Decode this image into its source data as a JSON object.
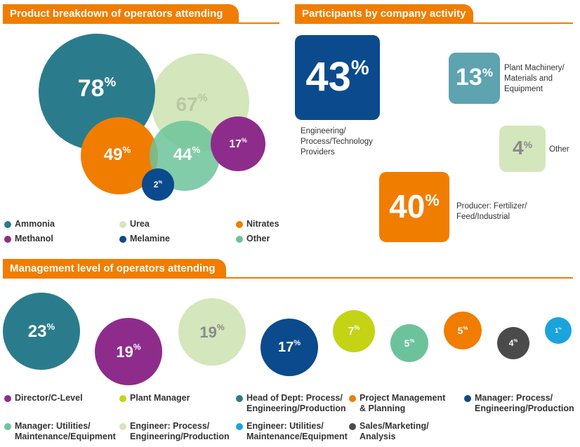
{
  "colors": {
    "accent": "#f07d00",
    "ammonia": "#2a7c8c",
    "urea": "#d4e6bb",
    "nitrates": "#f07d00",
    "methanol": "#8e2c8c",
    "melamine": "#0b4a8c",
    "other": "#6cc39b",
    "plant_machinery": "#5da3b0",
    "engineering": "#0b4a8c",
    "producer": "#f07d00",
    "other_activity": "#d4e6bb"
  },
  "section1": {
    "title": "Product breakdown of operators attending"
  },
  "section2": {
    "title": "Participants by company activity"
  },
  "section3": {
    "title": "Management level of operators attending"
  },
  "chart_data": [
    {
      "type": "bubble",
      "title": "Product breakdown of operators attending",
      "series": [
        {
          "name": "Ammonia",
          "value": 78,
          "label": "78",
          "color": "#2a7c8c"
        },
        {
          "name": "Urea",
          "value": 67,
          "label": "67",
          "color": "#d4e6bb"
        },
        {
          "name": "Nitrates",
          "value": 49,
          "label": "49",
          "color": "#f07d00"
        },
        {
          "name": "Other",
          "value": 44,
          "label": "44",
          "color": "#6cc39b"
        },
        {
          "name": "Methanol",
          "value": 17,
          "label": "17",
          "color": "#8e2c8c"
        },
        {
          "name": "Melamine",
          "value": 2,
          "label": "2",
          "color": "#0b4a8c"
        }
      ],
      "unit": "%",
      "legend": [
        {
          "name": "Ammonia",
          "color": "#2a7c8c"
        },
        {
          "name": "Urea",
          "color": "#d4e6bb"
        },
        {
          "name": "Nitrates",
          "color": "#f07d00"
        },
        {
          "name": "Methanol",
          "color": "#8e2c8c"
        },
        {
          "name": "Melamine",
          "color": "#0b4a8c"
        },
        {
          "name": "Other",
          "color": "#6cc39b"
        }
      ]
    },
    {
      "type": "bubble",
      "title": "Participants by company activity",
      "series": [
        {
          "name": "Engineering/\nProcess/Technology\nProviders",
          "value": 43,
          "label": "43",
          "color": "#0b4a8c"
        },
        {
          "name": "Producer: Fertilizer/\nFeed/Industrial",
          "value": 40,
          "label": "40",
          "color": "#f07d00"
        },
        {
          "name": "Plant Machinery/\nMaterials and\nEquipment",
          "value": 13,
          "label": "13",
          "color": "#5da3b0"
        },
        {
          "name": "Other",
          "value": 4,
          "label": "4",
          "color": "#d4e6bb"
        }
      ],
      "unit": "%"
    },
    {
      "type": "bubble",
      "title": "Management level of operators attending",
      "series": [
        {
          "name": "Head of Dept: Process/\nEngineering/Production",
          "value": 23,
          "label": "23",
          "color": "#2a7c8c"
        },
        {
          "name": "Director/C-Level",
          "value": 19,
          "label": "19",
          "color": "#8e2c8c"
        },
        {
          "name": "Engineer: Process/\nEngineering/Production",
          "value": 19,
          "label": "19",
          "color": "#d4e6bb"
        },
        {
          "name": "Manager: Process/\nEngineering/Production",
          "value": 17,
          "label": "17",
          "color": "#0b4a8c"
        },
        {
          "name": "Plant Manager",
          "value": 7,
          "label": "7",
          "color": "#c4d314"
        },
        {
          "name": "Manager: Utilities/\nMaintenance/Equipment",
          "value": 5,
          "label": "5",
          "color": "#6cc39b"
        },
        {
          "name": "Project Management\n& Planning",
          "value": 5,
          "label": "5",
          "color": "#f07d00"
        },
        {
          "name": "Sales/Marketing/\nAnalysis",
          "value": 4,
          "label": "4",
          "color": "#4b4b4b"
        },
        {
          "name": "Engineer: Utilities/\nMaintenance/Equipment",
          "value": 1,
          "label": "1",
          "color": "#1ba3dc"
        }
      ],
      "unit": "%",
      "legend": [
        {
          "name": "Director/C-Level",
          "color": "#8e2c8c"
        },
        {
          "name": "Plant Manager",
          "color": "#c4d314"
        },
        {
          "name": "Head of Dept: Process/\nEngineering/Production",
          "color": "#2a7c8c"
        },
        {
          "name": "Project Management\n& Planning",
          "color": "#f07d00"
        },
        {
          "name": "Manager: Process/\nEngineering/Production",
          "color": "#0b4a8c"
        },
        {
          "name": "Manager: Utilities/\nMaintenance/Equipment",
          "color": "#6cc39b"
        },
        {
          "name": "Engineer: Process/\nEngineering/Production",
          "color": "#d4e6bb"
        },
        {
          "name": "Engineer: Utilities/\nMaintenance/Equipment",
          "color": "#1ba3dc"
        },
        {
          "name": "Sales/Marketing/\nAnalysis",
          "color": "#4b4b4b"
        }
      ]
    }
  ]
}
